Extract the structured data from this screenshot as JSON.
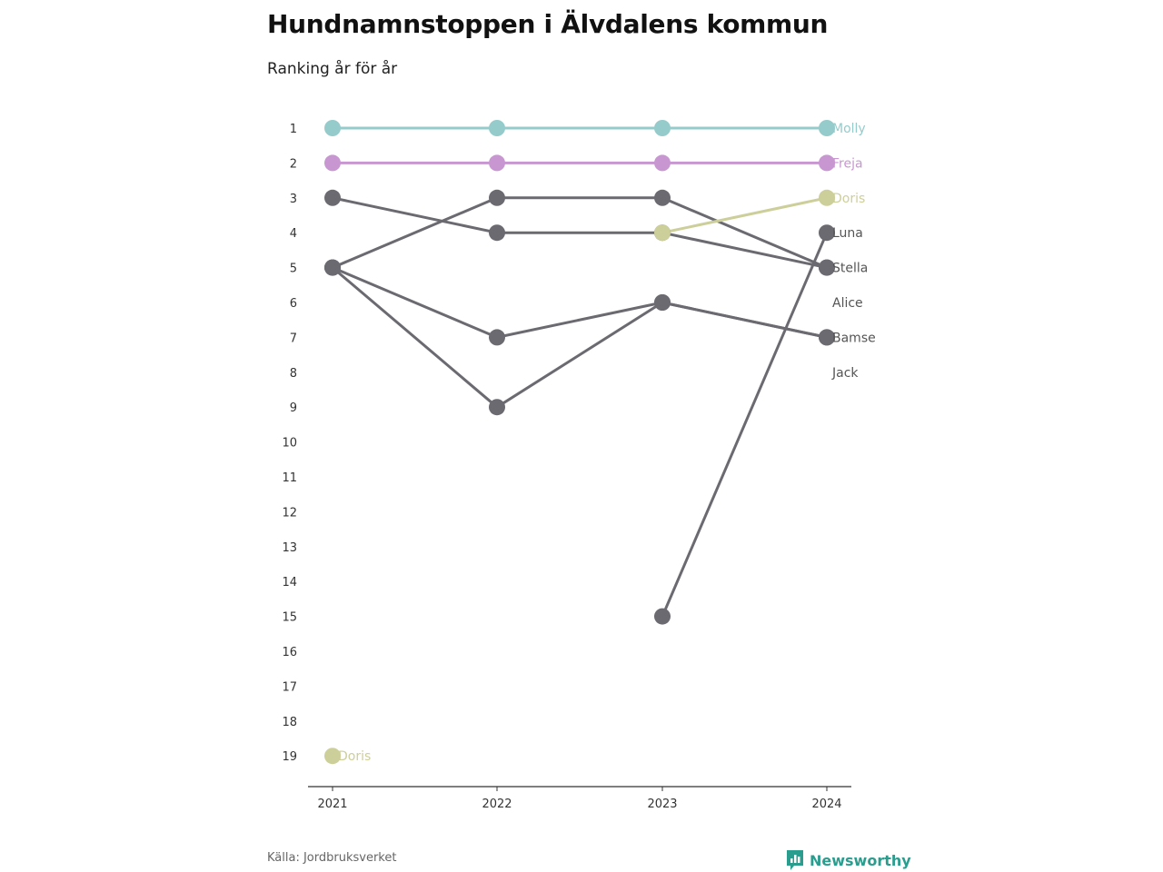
{
  "title": "Hundnamnstoppen i Älvdalens kommun",
  "subtitle": "Ranking år för år",
  "source": "Källa: Jordbruksverket",
  "brand": "Newsworthy",
  "chart_data": {
    "type": "line",
    "x": [
      "2021",
      "2022",
      "2023",
      "2024"
    ],
    "y_ticks": [
      1,
      2,
      3,
      4,
      5,
      6,
      7,
      8,
      9,
      10,
      11,
      12,
      13,
      14,
      15,
      16,
      17,
      18,
      19
    ],
    "ylim": [
      1,
      19
    ],
    "y_inverted": true,
    "series": [
      {
        "name": "Molly",
        "values": [
          1,
          1,
          1,
          1
        ],
        "color": "#96cbcb",
        "label_color": "#96cbcb",
        "highlight": true
      },
      {
        "name": "Freja",
        "values": [
          2,
          2,
          2,
          2
        ],
        "color": "#c896d1",
        "label_color": "#c896d1",
        "highlight": true
      },
      {
        "name": "Doris",
        "values": [
          19,
          null,
          4,
          3
        ],
        "color": "#cdcf9a",
        "label_color": "#cdcf9a",
        "highlight": true,
        "start_label": "Doris"
      },
      {
        "name": "Luna",
        "values": [
          null,
          null,
          15,
          4
        ],
        "color": "#6b6a70",
        "label_color": "#555555"
      },
      {
        "name": "Stella",
        "values": [
          3,
          4,
          4,
          5
        ],
        "color": "#6b6a70",
        "label_color": "#555555"
      },
      {
        "name": "Alice",
        "values": [
          5,
          3,
          3,
          5
        ],
        "color": "#6b6a70",
        "label_color": "#555555",
        "label_rank": 6
      },
      {
        "name": "Bamse",
        "values": [
          5,
          7,
          6,
          7
        ],
        "color": "#6b6a70",
        "label_color": "#555555"
      },
      {
        "name": "Jack",
        "values": [
          5,
          9,
          6,
          7
        ],
        "color": "#6b6a70",
        "label_color": "#555555",
        "label_rank": 8
      }
    ]
  }
}
